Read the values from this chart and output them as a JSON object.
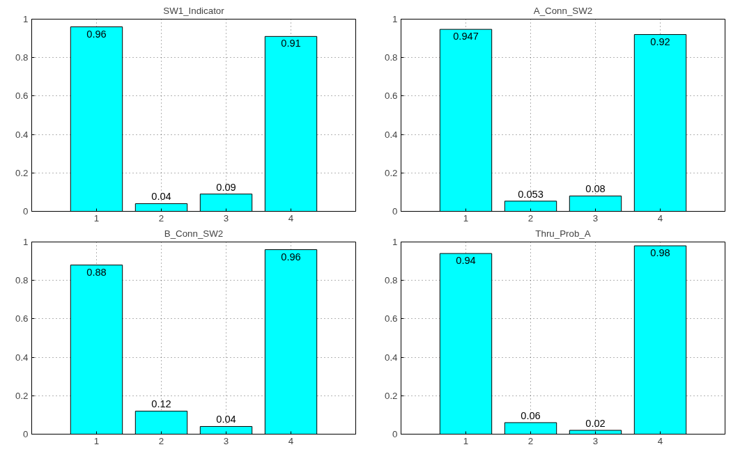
{
  "chart_data": [
    {
      "type": "bar",
      "title": "SW1_Indicator",
      "x": [
        1,
        2,
        3,
        4
      ],
      "values": [
        0.96,
        0.04,
        0.09,
        0.91
      ],
      "color": "#00ffff",
      "xlim": [
        0,
        5
      ],
      "xticks": [
        1,
        2,
        3,
        4
      ],
      "ylim": [
        0,
        1
      ],
      "yticks": [
        0,
        0.2,
        0.4,
        0.6,
        0.8,
        1
      ],
      "grid": true,
      "data_labels": true
    },
    {
      "type": "bar",
      "title": "A_Conn_SW2",
      "x": [
        1,
        2,
        3,
        4
      ],
      "values": [
        0.947,
        0.053,
        0.08,
        0.92
      ],
      "color": "#00ffff",
      "xlim": [
        0,
        5
      ],
      "xticks": [
        1,
        2,
        3,
        4
      ],
      "ylim": [
        0,
        1
      ],
      "yticks": [
        0,
        0.2,
        0.4,
        0.6,
        0.8,
        1
      ],
      "grid": true,
      "data_labels": true
    },
    {
      "type": "bar",
      "title": "B_Conn_SW2",
      "x": [
        1,
        2,
        3,
        4
      ],
      "values": [
        0.88,
        0.12,
        0.04,
        0.96
      ],
      "color": "#00ffff",
      "xlim": [
        0,
        5
      ],
      "xticks": [
        1,
        2,
        3,
        4
      ],
      "ylim": [
        0,
        1
      ],
      "yticks": [
        0,
        0.2,
        0.4,
        0.6,
        0.8,
        1
      ],
      "grid": true,
      "data_labels": true
    },
    {
      "type": "bar",
      "title": "Thru_Prob_A",
      "x": [
        1,
        2,
        3,
        4
      ],
      "values": [
        0.94,
        0.06,
        0.02,
        0.98
      ],
      "color": "#00ffff",
      "xlim": [
        0,
        5
      ],
      "xticks": [
        1,
        2,
        3,
        4
      ],
      "ylim": [
        0,
        1
      ],
      "yticks": [
        0,
        0.2,
        0.4,
        0.6,
        0.8,
        1
      ],
      "grid": true,
      "data_labels": true
    }
  ]
}
